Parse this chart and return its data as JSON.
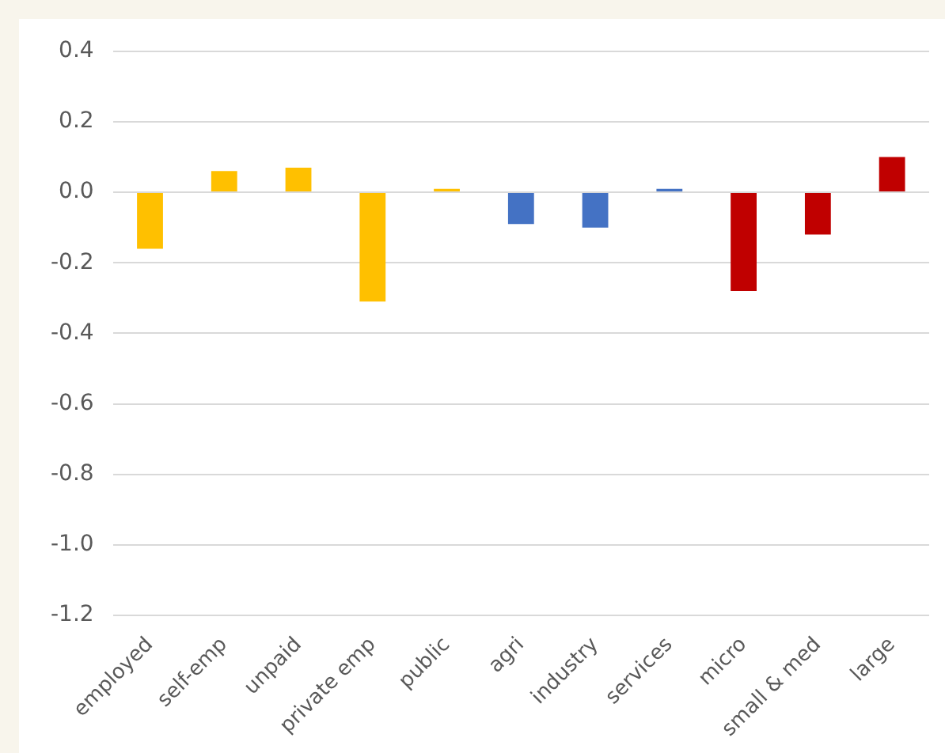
{
  "chart_data": {
    "type": "bar",
    "categories": [
      "employed",
      "self-emp",
      "unpaid",
      "private emp",
      "public",
      "agri",
      "industry",
      "services",
      "micro",
      "small & med",
      "large"
    ],
    "values": [
      -0.16,
      0.06,
      0.07,
      -0.31,
      0.01,
      -0.09,
      -0.1,
      0.01,
      -0.28,
      -0.12,
      0.1
    ],
    "colors": [
      "#ffc000",
      "#ffc000",
      "#ffc000",
      "#ffc000",
      "#ffc000",
      "#4472c4",
      "#4472c4",
      "#4472c4",
      "#c00000",
      "#c00000",
      "#c00000"
    ],
    "ylim": [
      -1.2,
      0.4
    ],
    "yticks": [
      {
        "value": -1.2,
        "label": "-1.2"
      },
      {
        "value": -1.0,
        "label": "-1.0"
      },
      {
        "value": -0.8,
        "label": "-0.8"
      },
      {
        "value": -0.6,
        "label": "-0.6"
      },
      {
        "value": -0.4,
        "label": "-0.4"
      },
      {
        "value": -0.2,
        "label": "-0.2"
      },
      {
        "value": 0,
        "label": "0.0"
      },
      {
        "value": 0.2,
        "label": "0.2"
      },
      {
        "value": 0.4,
        "label": "0.4"
      }
    ],
    "grid": "y"
  }
}
